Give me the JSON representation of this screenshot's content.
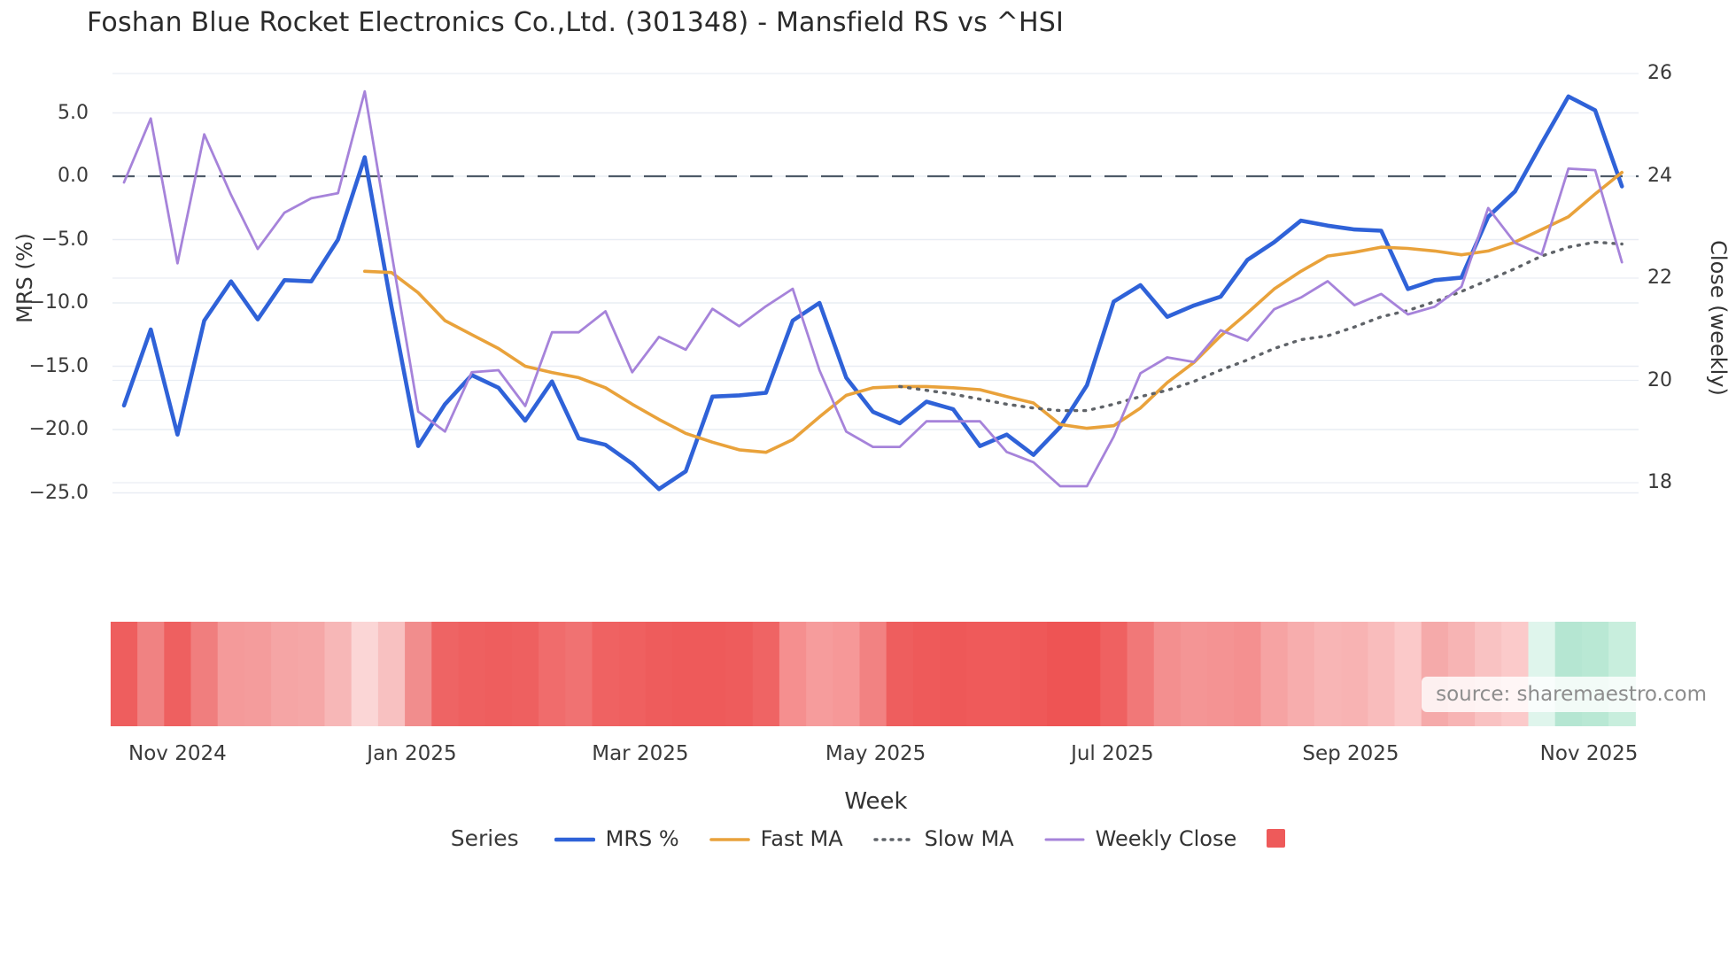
{
  "title": "Foshan Blue Rocket Electronics Co.,Ltd. (301348) - Mansfield RS vs ^HSI",
  "source_text": "source: sharemaestro.com",
  "legend": {
    "title": "Series",
    "items": [
      {
        "label": "MRS %"
      },
      {
        "label": "Fast MA"
      },
      {
        "label": "Slow MA"
      },
      {
        "label": "Weekly Close"
      }
    ],
    "swatch_color": "#ee5a5a"
  },
  "chart_data": {
    "type": "line",
    "title": "Foshan Blue Rocket Electronics Co.,Ltd. (301348) - Mansfield RS vs ^HSI",
    "xlabel": "Week",
    "ylabel_left": "MRS (%)",
    "ylabel_right": "Close (weekly)",
    "grid": true,
    "legend_position": "bottom",
    "y_left_ticks": [
      {
        "label": "5.0",
        "value": 5
      },
      {
        "label": "0.0",
        "value": 0
      },
      {
        "label": "−5.0",
        "value": -5
      },
      {
        "label": "−10.0",
        "value": -10
      },
      {
        "label": "−15.0",
        "value": -15
      },
      {
        "label": "−20.0",
        "value": -20
      },
      {
        "label": "−25.0",
        "value": -25
      }
    ],
    "y_right_ticks": [
      {
        "label": "26",
        "value": 26
      },
      {
        "label": "24",
        "value": 24
      },
      {
        "label": "22",
        "value": 22
      },
      {
        "label": "20",
        "value": 20
      },
      {
        "label": "18",
        "value": 18
      }
    ],
    "x_ticks": [
      {
        "label": "Nov 2024",
        "pos": 2.0
      },
      {
        "label": "Jan 2025",
        "pos": 10.76
      },
      {
        "label": "Mar 2025",
        "pos": 19.3
      },
      {
        "label": "May 2025",
        "pos": 28.1
      },
      {
        "label": "Jul 2025",
        "pos": 36.95
      },
      {
        "label": "Sep 2025",
        "pos": 45.86
      },
      {
        "label": "Nov 2025",
        "pos": 54.77
      }
    ],
    "n_points": 57,
    "zero_line_value": 0,
    "series": [
      {
        "name": "MRS %",
        "axis": "left",
        "color": "#2f62d8",
        "style": "solid",
        "width": 4.6,
        "start_index": 0,
        "values": [
          -18.1,
          -12.1,
          -20.4,
          -11.4,
          -8.3,
          -11.3,
          -8.2,
          -8.3,
          -5.0,
          1.5,
          -10.3,
          -21.3,
          -18.0,
          -15.7,
          -16.7,
          -19.3,
          -16.2,
          -20.7,
          -21.2,
          -22.7,
          -24.7,
          -23.3,
          -17.4,
          -17.3,
          -17.1,
          -11.4,
          -10.0,
          -15.9,
          -18.6,
          -19.5,
          -17.8,
          -18.4,
          -21.3,
          -20.4,
          -22.0,
          -19.8,
          -16.5,
          -9.9,
          -8.6,
          -11.1,
          -10.2,
          -9.5,
          -6.6,
          -5.2,
          -3.5,
          -3.9,
          -4.2,
          -4.3,
          -8.9,
          -8.2,
          -8.0,
          -3.2,
          -1.2,
          2.6,
          6.3,
          5.2,
          -0.8
        ]
      },
      {
        "name": "Fast MA",
        "axis": "left",
        "color": "#e9a23b",
        "style": "solid",
        "width": 3.6,
        "start_index": 9,
        "values": [
          -7.5,
          -7.6,
          -9.2,
          -11.4,
          -12.5,
          -13.6,
          -15.0,
          -15.5,
          -15.9,
          -16.7,
          -18.0,
          -19.2,
          -20.3,
          -21.0,
          -21.6,
          -21.8,
          -20.8,
          -19.0,
          -17.3,
          -16.7,
          -16.6,
          -16.6,
          -16.7,
          -16.85,
          -17.4,
          -17.9,
          -19.6,
          -19.9,
          -19.7,
          -18.3,
          -16.3,
          -14.7,
          -12.6,
          -10.8,
          -8.9,
          -7.5,
          -6.3,
          -6.0,
          -5.6,
          -5.7,
          -5.9,
          -6.2,
          -5.9,
          -5.2,
          -4.2,
          -3.2,
          -1.4,
          0.3
        ]
      },
      {
        "name": "Slow MA",
        "axis": "left",
        "color": "#5f6368",
        "style": "dotted",
        "width": 3.4,
        "start_index": 29,
        "values": [
          -16.6,
          -16.9,
          -17.2,
          -17.6,
          -18.0,
          -18.3,
          -18.5,
          -18.5,
          -18.0,
          -17.4,
          -16.9,
          -16.2,
          -15.3,
          -14.5,
          -13.6,
          -12.9,
          -12.6,
          -11.9,
          -11.1,
          -10.6,
          -9.9,
          -9.1,
          -8.2,
          -7.3,
          -6.3,
          -5.6,
          -5.2,
          -5.35
        ]
      },
      {
        "name": "Weekly Close",
        "axis": "right",
        "color": "#a683da",
        "style": "solid",
        "width": 2.8,
        "start_index": 0,
        "values": [
          23.87,
          25.12,
          22.29,
          24.81,
          23.63,
          22.57,
          23.28,
          23.56,
          23.66,
          25.65,
          22.5,
          19.39,
          19.0,
          20.16,
          20.2,
          19.5,
          20.94,
          20.94,
          21.35,
          20.16,
          20.85,
          20.6,
          21.4,
          21.06,
          21.45,
          21.79,
          20.2,
          19.0,
          18.7,
          18.7,
          19.2,
          19.2,
          19.2,
          18.6,
          18.4,
          17.93,
          17.93,
          18.9,
          20.14,
          20.45,
          20.36,
          20.98,
          20.78,
          21.39,
          21.62,
          21.94,
          21.47,
          21.69,
          21.29,
          21.44,
          21.83,
          23.37,
          22.69,
          22.46,
          24.14,
          24.11,
          22.31
        ]
      }
    ],
    "heatmap_colors": [
      "#ee5e5e",
      "#f08282",
      "#ee6060",
      "#f07e7e",
      "#f49a9a",
      "#f49c9c",
      "#f5a5a5",
      "#f5a7a7",
      "#f7b7b7",
      "#fbd6d6",
      "#f8c1c1",
      "#f18d8d",
      "#ee6464",
      "#ee6060",
      "#ee5e5e",
      "#ee6060",
      "#f06c6c",
      "#f07272",
      "#ef6262",
      "#ef6060",
      "#ee5c5c",
      "#ee5a5a",
      "#ee5a5a",
      "#ee5c5c",
      "#ef6464",
      "#f58f8f",
      "#f69c9c",
      "#f69898",
      "#f28282",
      "#ee5e5e",
      "#ee5a5a",
      "#ee5858",
      "#ef5a5a",
      "#ef5a5a",
      "#ef5858",
      "#ee5454",
      "#ee5454",
      "#ef6161",
      "#f17878",
      "#f38f8f",
      "#f49595",
      "#f49393",
      "#f49090",
      "#f6a3a3",
      "#f7adad",
      "#f8b5b5",
      "#f8b3b3",
      "#f9bcbc",
      "#fbc9c9",
      "#f5aaaa",
      "#f7b4b4",
      "#f9c2c2",
      "#fbcaca",
      "#dff5ec",
      "#b5e6d2",
      "#b9e8d4",
      "#c8eedd"
    ]
  },
  "colors": {
    "background": "#ffffff",
    "grid": "#e9edf4",
    "zero_dash": "#4e5a68",
    "text": "#333333",
    "source_text": "#8d8d8d"
  }
}
